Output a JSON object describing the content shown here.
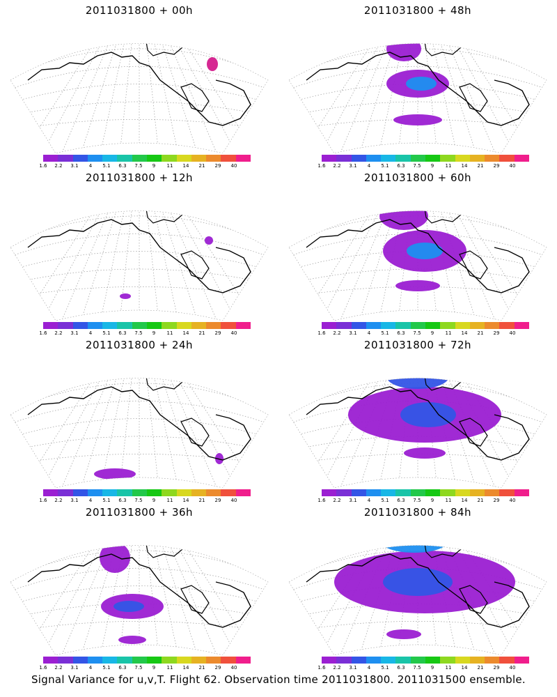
{
  "caption": "Signal Variance for u,v,T. Flight 62. Observation time 2011031800. 2011031500 ensemble.",
  "colorbar": {
    "colors": [
      "#9b1fd2",
      "#7a2fd6",
      "#3355e6",
      "#1e8ff0",
      "#18b7e6",
      "#19c4a8",
      "#22c84a",
      "#16c814",
      "#8ed81f",
      "#d8d81f",
      "#e6b222",
      "#ec8a2d",
      "#f0503c",
      "#f01e8c"
    ],
    "labels": [
      "1.6",
      "2.2",
      "3.1",
      "4",
      "5.1",
      "6.3",
      "7.5",
      "9",
      "11",
      "14",
      "21",
      "29",
      "40"
    ]
  },
  "panels": [
    {
      "title": "2011031800 + 00h",
      "level": 0
    },
    {
      "title": "2011031800 + 48h",
      "level": 4
    },
    {
      "title": "2011031800 + 12h",
      "level": 1
    },
    {
      "title": "2011031800 + 60h",
      "level": 5
    },
    {
      "title": "2011031800 + 24h",
      "level": 2
    },
    {
      "title": "2011031800 + 72h",
      "level": 6
    },
    {
      "title": "2011031800 + 36h",
      "level": 3
    },
    {
      "title": "2011031800 + 84h",
      "level": 7
    }
  ]
}
